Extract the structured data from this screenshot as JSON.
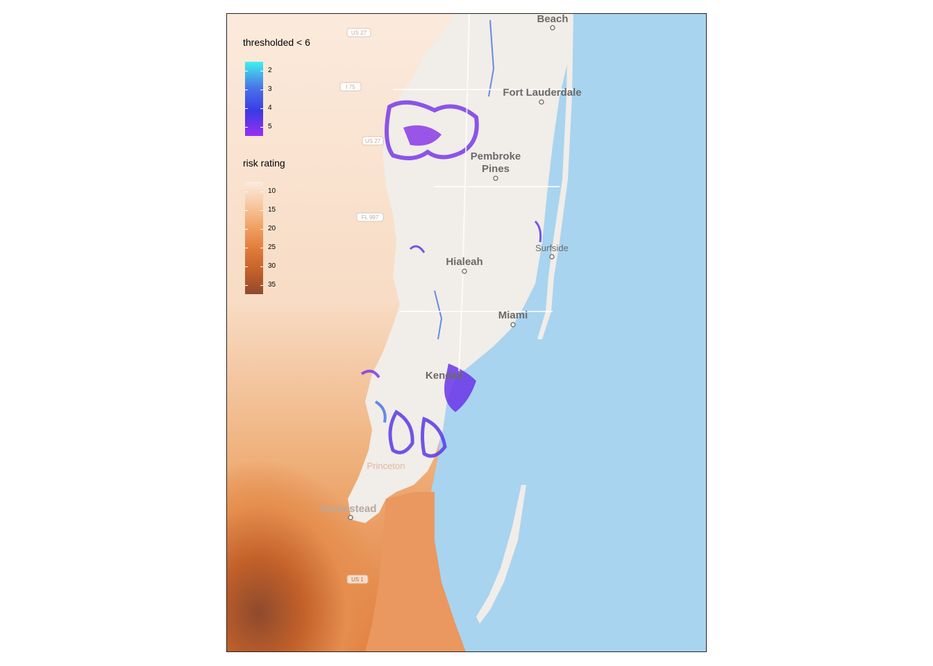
{
  "places": [
    {
      "name": "Beach"
    },
    {
      "name": "Fort Lauderdale"
    },
    {
      "name": "Pembroke"
    },
    {
      "name": "Pines"
    },
    {
      "name": "Surfside"
    },
    {
      "name": "Hialeah"
    },
    {
      "name": "Miami"
    },
    {
      "name": "Kendall"
    },
    {
      "name": "Princeton"
    },
    {
      "name": "Homestead"
    }
  ],
  "roads": [
    "US 27",
    "I 75",
    "US 27",
    "FL 997",
    "US 1"
  ],
  "legend_threshold": {
    "title": "thresholded < 6",
    "ticks": [
      "2",
      "3",
      "4",
      "5"
    ],
    "colors": [
      "#3ff0ee",
      "#4a78e8",
      "#3a3ae6",
      "#9a2ff0"
    ]
  },
  "legend_risk": {
    "title": "risk rating",
    "ticks": [
      "10",
      "15",
      "20",
      "25",
      "30",
      "35"
    ],
    "colors": [
      "#fbebe0",
      "#f7c9a3",
      "#f0a264",
      "#e07b3a",
      "#c2602a",
      "#8e4a2c"
    ]
  },
  "map_colors": {
    "water": "#a8d4f0",
    "land": "#f1ede8"
  }
}
